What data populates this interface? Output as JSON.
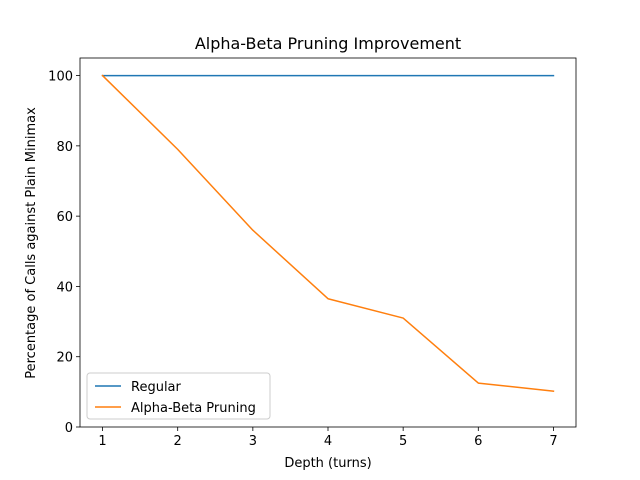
{
  "chart_data": {
    "type": "line",
    "title": "Alpha-Beta Pruning Improvement",
    "xlabel": "Depth (turns)",
    "ylabel": "Percentage of Calls against Plain Minimax",
    "x": [
      1,
      2,
      3,
      4,
      5,
      6,
      7
    ],
    "xticks": [
      1,
      2,
      3,
      4,
      5,
      6,
      7
    ],
    "yticks": [
      0,
      20,
      40,
      60,
      80,
      100
    ],
    "xlim": [
      0.7,
      7.3
    ],
    "ylim": [
      0,
      105
    ],
    "grid": false,
    "legend_position": "lower-left",
    "series": [
      {
        "name": "Regular",
        "color": "#1f77b4",
        "values": [
          100,
          100,
          100,
          100,
          100,
          100,
          100
        ]
      },
      {
        "name": "Alpha-Beta Pruning",
        "color": "#ff7f0e",
        "values": [
          100,
          79.0,
          56.0,
          36.5,
          31.0,
          12.5,
          10.2
        ]
      }
    ]
  }
}
